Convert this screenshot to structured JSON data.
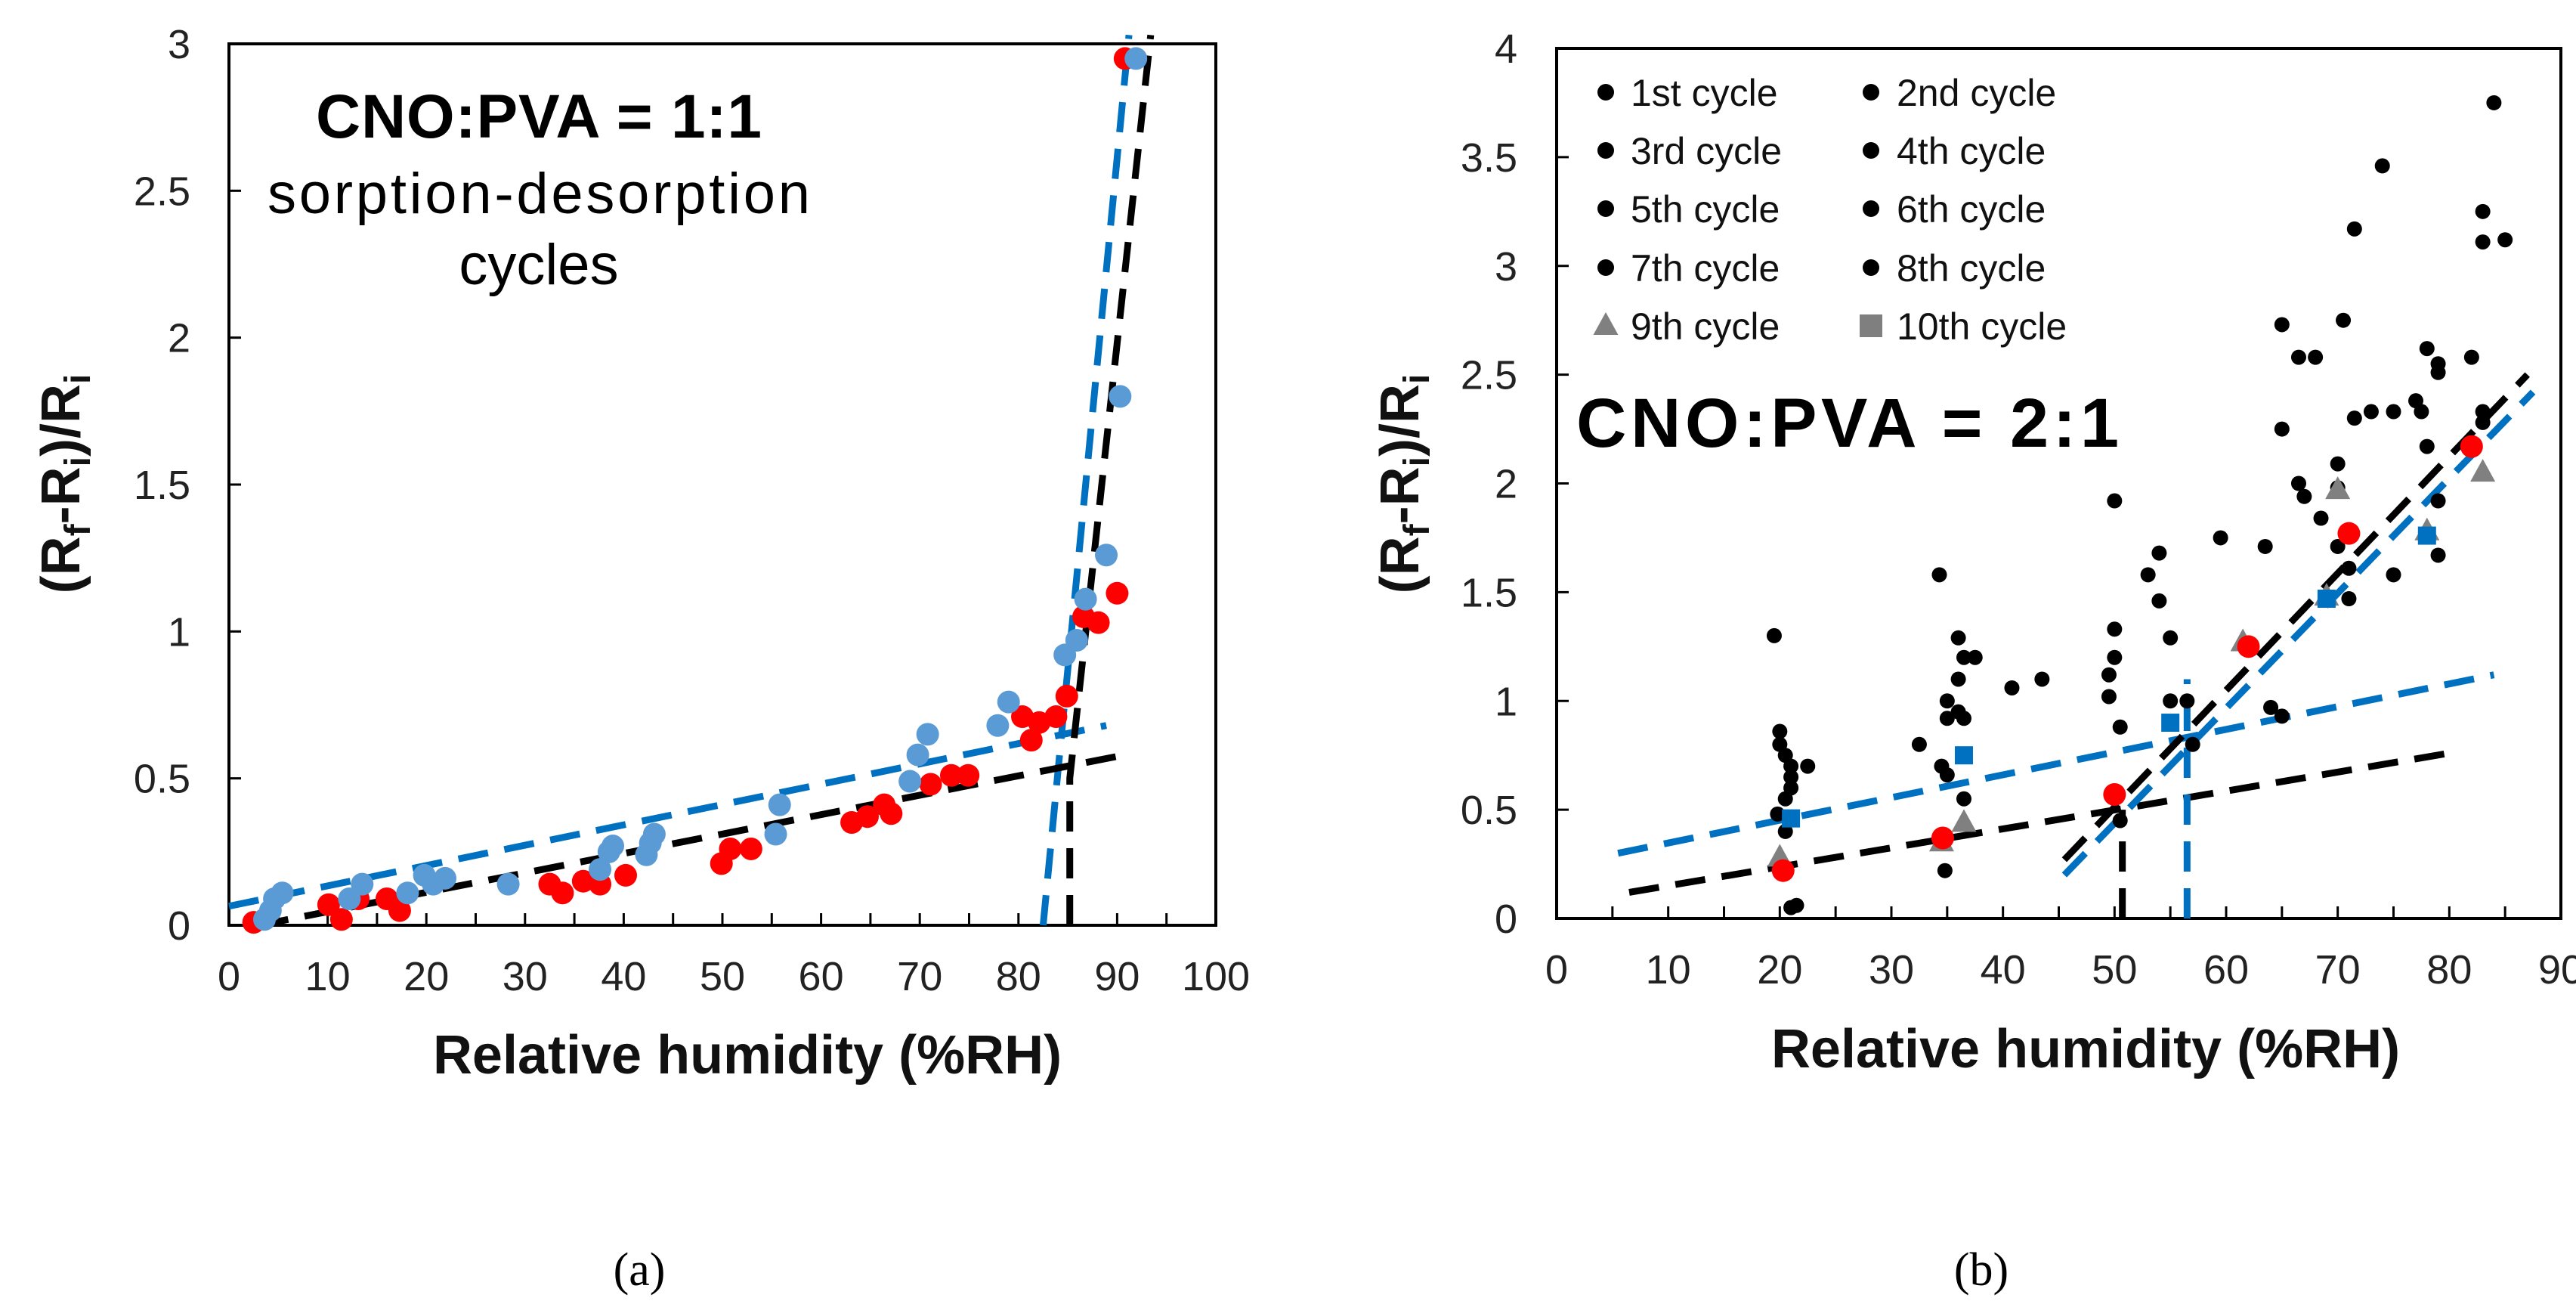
{
  "chart_data": [
    {
      "type": "scatter",
      "panel_label": "(a)",
      "annotation": {
        "title": "CNO:PVA = 1:1",
        "line2": "sorption-desorption",
        "line3": "cycles"
      },
      "xlabel": "Relative humidity (%RH)",
      "ylabel": {
        "main": "(R",
        "sub1": "f",
        "mid": "-R",
        "sub2": "i",
        "tail": ")/R",
        "sub3": "i"
      },
      "xlim": [
        0,
        100
      ],
      "ylim": [
        0,
        3
      ],
      "xticks": [
        "0",
        "10",
        "20",
        "30",
        "40",
        "50",
        "60",
        "70",
        "80",
        "90",
        "100"
      ],
      "yticks": [
        "0",
        "0.5",
        "1",
        "1.5",
        "2",
        "2.5",
        "3"
      ],
      "grid": false,
      "series": [
        {
          "color": "#ff0000",
          "marker": "circle",
          "x": [
            2.5,
            10.1,
            11.4,
            13.1,
            16,
            17.3,
            32.5,
            33.8,
            35.9,
            37.6,
            40.2,
            49.9,
            50.8,
            52.9,
            63.1,
            64.7,
            66.4,
            67.1,
            71.1,
            73.2,
            74.9,
            80.4,
            81.3,
            82.1,
            83.8,
            84.9,
            86.6,
            88.1,
            90,
            90.8
          ],
          "y": [
            0.01,
            0.07,
            0.02,
            0.09,
            0.09,
            0.05,
            0.14,
            0.11,
            0.15,
            0.14,
            0.17,
            0.21,
            0.26,
            0.26,
            0.35,
            0.37,
            0.41,
            0.38,
            0.48,
            0.51,
            0.51,
            0.71,
            0.63,
            0.69,
            0.71,
            0.78,
            1.05,
            1.03,
            1.13,
            2.95
          ]
        },
        {
          "color": "#5b9bd5",
          "marker": "circle",
          "x": [
            3.6,
            4.2,
            4.6,
            5.4,
            12.2,
            13.5,
            18.1,
            19.8,
            20.7,
            21.9,
            28.3,
            37.6,
            38.5,
            38.9,
            42.3,
            42.7,
            43.1,
            55.4,
            55.8,
            69,
            69.8,
            70.8,
            77.9,
            79,
            84.7,
            85.9,
            86.8,
            88.9,
            90.3,
            91.9
          ],
          "y": [
            0.02,
            0.05,
            0.09,
            0.11,
            0.09,
            0.14,
            0.11,
            0.17,
            0.14,
            0.16,
            0.14,
            0.19,
            0.25,
            0.27,
            0.24,
            0.28,
            0.31,
            0.31,
            0.41,
            0.49,
            0.58,
            0.65,
            0.68,
            0.76,
            0.92,
            0.97,
            1.11,
            1.26,
            1.8,
            2.95
          ]
        }
      ],
      "fit_lines": [
        {
          "color": "#0070c0",
          "points": [
            [
              0,
              0.065
            ],
            [
              88.9,
              0.68
            ]
          ]
        },
        {
          "color": "#0070c0",
          "points": [
            [
              82.5,
              0
            ],
            [
              91.2,
              3.03
            ]
          ]
        },
        {
          "color": "#000000",
          "points": [
            [
              3,
              0
            ],
            [
              90.8,
              0.58
            ]
          ]
        },
        {
          "color": "#000000",
          "points": [
            [
              85.2,
              0
            ],
            [
              85.2,
              0.5
            ],
            [
              93.4,
              3.03
            ]
          ]
        }
      ]
    },
    {
      "type": "scatter",
      "panel_label": "(b)",
      "annotation": {
        "title": "CNO:PVA = 2:1"
      },
      "xlabel": "Relative humidity (%RH)",
      "ylabel": {
        "main": "(R",
        "sub1": "f",
        "mid": "-R",
        "sub2": "i",
        "tail": ")/R",
        "sub3": "i"
      },
      "xlim": [
        0,
        90
      ],
      "ylim": [
        0,
        4
      ],
      "xticks": [
        "0",
        "10",
        "20",
        "30",
        "40",
        "50",
        "60",
        "70",
        "80",
        "90"
      ],
      "yticks": [
        "0",
        "0.5",
        "1",
        "1.5",
        "2",
        "2.5",
        "3",
        "3.5",
        "4"
      ],
      "grid": false,
      "legend": {
        "placement": "top-left",
        "entries": [
          {
            "label": "1st cycle",
            "marker": "circle",
            "color": "#000000"
          },
          {
            "label": "2nd cycle",
            "marker": "circle",
            "color": "#000000"
          },
          {
            "label": "3rd cycle",
            "marker": "circle",
            "color": "#000000"
          },
          {
            "label": "4th cycle",
            "marker": "circle",
            "color": "#000000"
          },
          {
            "label": "5th cycle",
            "marker": "circle",
            "color": "#000000"
          },
          {
            "label": "6th cycle",
            "marker": "circle",
            "color": "#000000"
          },
          {
            "label": "7th cycle",
            "marker": "circle",
            "color": "#000000"
          },
          {
            "label": "8th cycle",
            "marker": "circle",
            "color": "#000000"
          },
          {
            "label": "9th cycle",
            "marker": "triangle",
            "color": "#808080"
          },
          {
            "label": "10th cycle",
            "marker": "square",
            "color": "#7f7f7f"
          }
        ]
      },
      "series": [
        {
          "color": "#000000",
          "marker": "circle",
          "x": [
            19.5,
            20,
            20,
            20.5,
            21,
            21,
            22.5,
            19.8,
            20.5,
            21,
            20.5,
            21,
            21.5,
            34.3,
            36,
            36.5,
            37.5,
            36,
            35,
            36,
            35,
            36.5,
            32.5,
            34.5,
            35,
            36.5,
            34.8,
            40.8,
            43.5,
            50,
            50,
            50,
            49.5,
            49.5,
            50.5,
            50.5,
            53,
            54,
            54,
            55,
            55,
            56.5,
            57,
            59.5,
            63.5,
            64,
            65,
            65,
            65,
            66.5,
            68,
            66.5,
            67,
            68.5,
            70.5,
            70,
            70,
            70,
            71,
            71,
            71.5,
            71.5,
            73,
            74,
            75,
            75,
            77,
            77.5,
            78,
            78,
            79,
            79,
            79,
            79,
            82,
            83,
            83,
            83,
            83,
            84,
            85
          ],
          "y": [
            1.3,
            0.86,
            0.8,
            0.75,
            0.7,
            0.65,
            0.7,
            0.48,
            0.55,
            0.6,
            0.4,
            0.05,
            0.06,
            1.58,
            1.29,
            1.2,
            1.2,
            1.1,
            1.0,
            0.95,
            0.92,
            0.92,
            0.8,
            0.7,
            0.66,
            0.55,
            0.22,
            1.06,
            1.1,
            1.92,
            1.33,
            1.2,
            1.12,
            1.02,
            0.88,
            0.45,
            1.58,
            1.68,
            1.46,
            1.29,
            1.0,
            1.0,
            0.8,
            1.75,
            1.71,
            0.97,
            0.93,
            2.73,
            2.25,
            2.58,
            2.58,
            2.0,
            1.94,
            1.84,
            2.75,
            2.09,
            1.98,
            1.71,
            1.61,
            1.47,
            2.3,
            3.17,
            2.33,
            3.46,
            2.33,
            1.58,
            2.38,
            2.33,
            2.62,
            2.17,
            2.55,
            2.51,
            1.92,
            1.67,
            2.58,
            3.25,
            3.11,
            2.33,
            2.28,
            3.75,
            3.12
          ]
        },
        {
          "color": "#808080",
          "marker": "triangle",
          "x": [
            20,
            36.5,
            34.5,
            61.5,
            70,
            69,
            83,
            78
          ],
          "y": [
            0.28,
            0.44,
            0.35,
            1.27,
            1.97,
            1.48,
            2.05,
            1.78
          ]
        },
        {
          "color": "#ff0000",
          "marker": "circle",
          "x": [
            20.3,
            34.6,
            50,
            62,
            71,
            82
          ],
          "y": [
            0.22,
            0.37,
            0.57,
            1.25,
            1.77,
            2.17
          ]
        },
        {
          "color": "#0070c0",
          "marker": "square",
          "x": [
            21,
            36.5,
            55,
            69,
            78
          ],
          "y": [
            0.46,
            0.75,
            0.9,
            1.47,
            1.76
          ]
        }
      ],
      "fit_lines": [
        {
          "color": "#0070c0",
          "points": [
            [
              5.5,
              0.3
            ],
            [
              84,
              1.12
            ]
          ]
        },
        {
          "color": "#000000",
          "points": [
            [
              6.5,
              0.12
            ],
            [
              80,
              0.76
            ]
          ]
        },
        {
          "color": "#000000",
          "points": [
            [
              45.5,
              0.27
            ],
            [
              87,
              2.5
            ]
          ]
        },
        {
          "color": "#0070c0",
          "points": [
            [
              45.5,
              0.2
            ],
            [
              87.5,
              2.42
            ]
          ]
        },
        {
          "color": "#000000",
          "points": [
            [
              50.7,
              0
            ],
            [
              50.7,
              0.5
            ]
          ]
        },
        {
          "color": "#0070c0",
          "points": [
            [
              56.5,
              0
            ],
            [
              56.5,
              1.1
            ]
          ]
        }
      ]
    }
  ]
}
